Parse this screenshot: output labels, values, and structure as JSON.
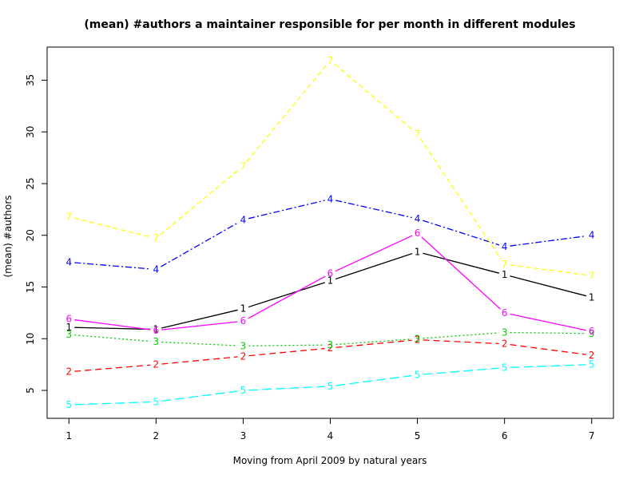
{
  "chart_data": {
    "type": "line",
    "title": "(mean) #authors a maintainer responsible for per month in different modules",
    "xlabel": "Moving from April 2009 by natural years",
    "ylabel": "(mean) #authors",
    "x": [
      1,
      2,
      3,
      4,
      5,
      6,
      7
    ],
    "xlim": [
      0.75,
      7.25
    ],
    "ylim": [
      2.3,
      38.2
    ],
    "xticks": [
      1,
      2,
      3,
      4,
      5,
      6,
      7
    ],
    "yticks": [
      5,
      10,
      15,
      20,
      25,
      30,
      35
    ],
    "grid": false,
    "legend": "none",
    "series": [
      {
        "name": "1",
        "color": "#000000",
        "dash": "",
        "values": [
          11.1,
          10.9,
          12.9,
          15.6,
          18.4,
          16.2,
          14.0
        ]
      },
      {
        "name": "2",
        "color": "#ff0000",
        "dash": "8 5",
        "values": [
          6.8,
          7.5,
          8.3,
          9.1,
          9.9,
          9.5,
          8.4
        ]
      },
      {
        "name": "3",
        "color": "#00cd00",
        "dash": "2 3",
        "values": [
          10.4,
          9.7,
          9.3,
          9.4,
          10.0,
          10.6,
          10.5
        ]
      },
      {
        "name": "4",
        "color": "#0000ff",
        "dash": "8 3 2 3",
        "values": [
          17.4,
          16.7,
          21.5,
          23.5,
          21.6,
          18.9,
          20.0
        ]
      },
      {
        "name": "5",
        "color": "#00ffff",
        "dash": "12 5",
        "values": [
          3.6,
          3.9,
          5.0,
          5.4,
          6.5,
          7.2,
          7.5
        ]
      },
      {
        "name": "6",
        "color": "#ff00ff",
        "dash": "",
        "values": [
          11.9,
          10.8,
          11.7,
          16.3,
          20.2,
          12.5,
          10.7
        ]
      },
      {
        "name": "7",
        "color": "#ffff00",
        "dash": "6 4",
        "values": [
          21.8,
          19.7,
          26.7,
          36.9,
          29.8,
          17.2,
          16.1
        ]
      }
    ]
  }
}
